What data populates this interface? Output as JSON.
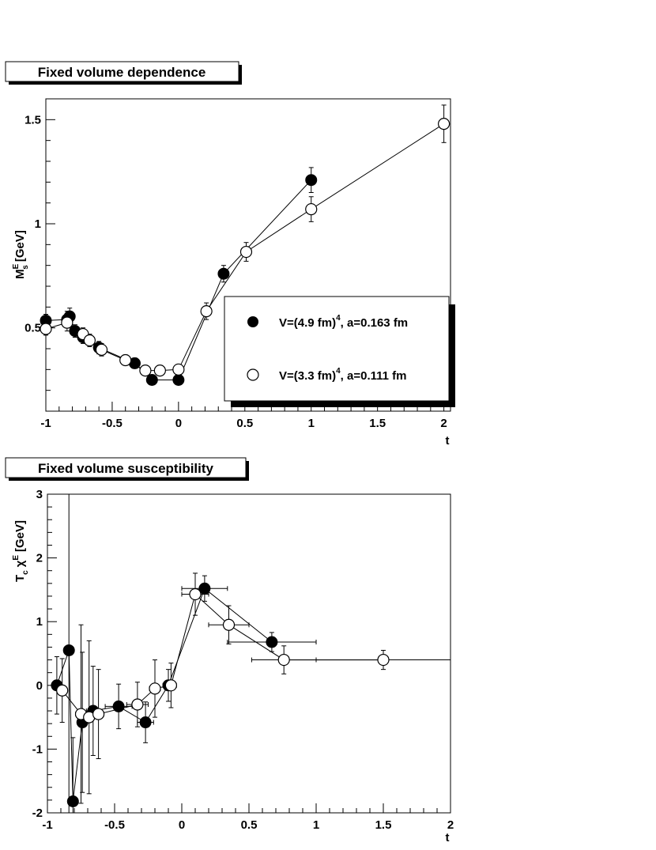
{
  "chart_data": [
    {
      "type": "scatter",
      "title": "Fixed volume dependence",
      "xlabel": "t",
      "ylabel": "M_s^E [GeV]",
      "ylabel_main": "M",
      "ylabel_sup": "E",
      "ylabel_sub": "s",
      "ylabel_unit": "[GeV]",
      "xlim": [
        -1,
        2.05
      ],
      "ylim": [
        0.1,
        1.6
      ],
      "xticks": [
        -1,
        -0.5,
        0,
        0.5,
        1,
        1.5,
        2
      ],
      "xtick_labels": [
        "-1",
        "-0.5",
        "0",
        "0.5",
        "1",
        "1.5",
        "2"
      ],
      "yticks": [
        0.5,
        1,
        1.5
      ],
      "ytick_labels": [
        "0.5",
        "1",
        "1.5"
      ],
      "legend_placement": "right",
      "series": [
        {
          "name": "V=(4.9 fm)^4, a=0.163 fm",
          "legend_main": "V=(4.9 fm)",
          "legend_sup": "4",
          "legend_tail": ", a=0.163 fm",
          "marker": "filled",
          "points": [
            {
              "x": -1.0,
              "y": 0.535,
              "ey": 0.03
            },
            {
              "x": -0.84,
              "y": 0.54,
              "ey": 0.04
            },
            {
              "x": -0.82,
              "y": 0.555,
              "ey": 0.04
            },
            {
              "x": -0.78,
              "y": 0.485,
              "ey": 0.03
            },
            {
              "x": -0.72,
              "y": 0.455,
              "ey": 0.03
            },
            {
              "x": -0.6,
              "y": 0.405,
              "ey": 0.03
            },
            {
              "x": -0.33,
              "y": 0.33,
              "ey": 0.025
            },
            {
              "x": -0.2,
              "y": 0.25,
              "ey": 0.02
            },
            {
              "x": 0.0,
              "y": 0.25,
              "ey": 0.02
            },
            {
              "x": 0.34,
              "y": 0.76,
              "ey": 0.04
            },
            {
              "x": 1.0,
              "y": 1.21,
              "ey": 0.06
            }
          ]
        },
        {
          "name": "V=(3.3 fm)^4, a=0.111 fm",
          "legend_main": "V=(3.3 fm)",
          "legend_sup": "4",
          "legend_tail": ", a=0.111 fm",
          "marker": "open",
          "points": [
            {
              "x": -1.0,
              "y": 0.495,
              "ey": 0.03
            },
            {
              "x": -0.84,
              "y": 0.525,
              "ey": 0.04
            },
            {
              "x": -0.72,
              "y": 0.47,
              "ey": 0.03
            },
            {
              "x": -0.67,
              "y": 0.44,
              "ey": 0.03
            },
            {
              "x": -0.58,
              "y": 0.395,
              "ey": 0.03
            },
            {
              "x": -0.4,
              "y": 0.345,
              "ey": 0.025
            },
            {
              "x": -0.25,
              "y": 0.295,
              "ey": 0.02
            },
            {
              "x": -0.14,
              "y": 0.295,
              "ey": 0.02
            },
            {
              "x": 0.0,
              "y": 0.3,
              "ey": 0.02
            },
            {
              "x": 0.21,
              "y": 0.58,
              "ey": 0.04
            },
            {
              "x": 0.51,
              "y": 0.865,
              "ey": 0.045
            },
            {
              "x": 1.0,
              "y": 1.07,
              "ey": 0.06
            },
            {
              "x": 2.0,
              "y": 1.48,
              "ey": 0.09
            }
          ]
        }
      ]
    },
    {
      "type": "scatter",
      "title": "Fixed volume susceptibility",
      "xlabel": "t",
      "ylabel": "T_c χ^E [GeV]",
      "ylabel_t": "T",
      "ylabel_c": "c",
      "ylabel_chi": "χ",
      "ylabel_sup": "E",
      "ylabel_unit": "[GeV]",
      "xlim": [
        -1,
        2
      ],
      "ylim": [
        -2,
        3
      ],
      "xticks": [
        -1,
        -0.5,
        0,
        0.5,
        1,
        1.5,
        2
      ],
      "xtick_labels": [
        "-1",
        "-0.5",
        "0",
        "0.5",
        "1",
        "1.5",
        "2"
      ],
      "yticks": [
        -2,
        -1,
        0,
        1,
        2,
        3
      ],
      "ytick_labels": [
        "-2",
        "-1",
        "0",
        "1",
        "2",
        "3"
      ],
      "series": [
        {
          "name": "V=(4.9 fm)^4, a=0.163 fm",
          "marker": "filled",
          "points": [
            {
              "x": -0.93,
              "y": 0.0,
              "ey": 0.45,
              "ex": 0.0
            },
            {
              "x": -0.84,
              "y": 0.55,
              "ey": 2.8,
              "ex": 0.0
            },
            {
              "x": -0.81,
              "y": -1.82,
              "ey": 1.0,
              "ex": 0.0
            },
            {
              "x": -0.74,
              "y": -0.58,
              "ey": 1.1,
              "ex": 0.0
            },
            {
              "x": -0.66,
              "y": -0.4,
              "ey": 0.7,
              "ex": 0.05
            },
            {
              "x": -0.47,
              "y": -0.33,
              "ey": 0.35,
              "ex": 0.1
            },
            {
              "x": -0.27,
              "y": -0.58,
              "ey": 0.32,
              "ex": 0.06
            },
            {
              "x": -0.1,
              "y": 0.0,
              "ey": 0.25,
              "ex": 0.04
            },
            {
              "x": 0.17,
              "y": 1.52,
              "ey": 0.2,
              "ex": 0.17
            },
            {
              "x": 0.67,
              "y": 0.68,
              "ey": 0.15,
              "ex": 0.33
            }
          ]
        },
        {
          "name": "V=(3.3 fm)^4, a=0.111 fm",
          "marker": "open",
          "points": [
            {
              "x": -0.89,
              "y": -0.08,
              "ey": 0.5,
              "ex": 0.0
            },
            {
              "x": -0.75,
              "y": -0.45,
              "ey": 1.4,
              "ex": 0.04
            },
            {
              "x": -0.69,
              "y": -0.5,
              "ey": 1.2,
              "ex": 0.04
            },
            {
              "x": -0.62,
              "y": -0.45,
              "ey": 0.7,
              "ex": 0.04
            },
            {
              "x": -0.33,
              "y": -0.3,
              "ey": 0.35,
              "ex": 0.08
            },
            {
              "x": -0.2,
              "y": -0.05,
              "ey": 0.45,
              "ex": 0.04
            },
            {
              "x": -0.08,
              "y": 0.0,
              "ey": 0.35,
              "ex": 0.04
            },
            {
              "x": 0.1,
              "y": 1.43,
              "ey": 0.33,
              "ex": 0.1
            },
            {
              "x": 0.35,
              "y": 0.95,
              "ey": 0.3,
              "ex": 0.15
            },
            {
              "x": 0.76,
              "y": 0.4,
              "ey": 0.22,
              "ex": 0.24
            },
            {
              "x": 1.5,
              "y": 0.4,
              "ey": 0.15,
              "ex": 0.5
            }
          ]
        }
      ]
    }
  ]
}
